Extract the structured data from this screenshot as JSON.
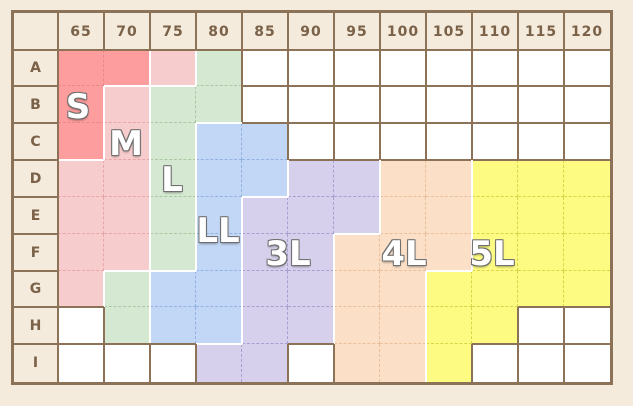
{
  "columns": [
    "65",
    "70",
    "75",
    "80",
    "85",
    "90",
    "95",
    "100",
    "105",
    "110",
    "115",
    "120"
  ],
  "rows": [
    "A",
    "B",
    "C",
    "D",
    "E",
    "F",
    "G",
    "H",
    "I"
  ],
  "colors": {
    "S": "#fd9d9d",
    "M": "#f7cccc",
    "L": "#d5e8d1",
    "LL": "#c2d6f5",
    "3L": "#d7d0ec",
    "4L": "#fbdfc6",
    "5L": "#fdfb82",
    "header": "#f4ebdc",
    "border": "#8c7257",
    "empty": "#ffffff"
  },
  "grid": [
    [
      "S",
      "S",
      "M",
      "L",
      "",
      "",
      "",
      "",
      "",
      "",
      "",
      ""
    ],
    [
      "S",
      "M",
      "L",
      "L",
      "",
      "",
      "",
      "",
      "",
      "",
      "",
      ""
    ],
    [
      "S",
      "M",
      "L",
      "LL",
      "LL",
      "",
      "",
      "",
      "",
      "",
      "",
      ""
    ],
    [
      "M",
      "M",
      "L",
      "LL",
      "LL",
      "3L",
      "3L",
      "4L",
      "4L",
      "5L",
      "5L",
      "5L"
    ],
    [
      "M",
      "M",
      "L",
      "LL",
      "3L",
      "3L",
      "3L",
      "4L",
      "4L",
      "5L",
      "5L",
      "5L"
    ],
    [
      "M",
      "M",
      "L",
      "LL",
      "3L",
      "3L",
      "4L",
      "4L",
      "4L",
      "5L",
      "5L",
      "5L"
    ],
    [
      "M",
      "L",
      "LL",
      "LL",
      "3L",
      "3L",
      "4L",
      "4L",
      "5L",
      "5L",
      "5L",
      "5L"
    ],
    [
      "",
      "L",
      "LL",
      "LL",
      "3L",
      "3L",
      "4L",
      "4L",
      "5L",
      "5L",
      "",
      ""
    ],
    [
      "",
      "",
      "",
      "3L",
      "3L",
      "",
      "4L",
      "4L",
      "5L",
      "",
      "",
      ""
    ]
  ],
  "size_labels": [
    {
      "text": "S",
      "size": "S"
    },
    {
      "text": "M",
      "size": "M"
    },
    {
      "text": "L",
      "size": "L"
    },
    {
      "text": "LL",
      "size": "LL"
    },
    {
      "text": "3L",
      "size": "3L"
    },
    {
      "text": "4L",
      "size": "4L"
    },
    {
      "text": "5L",
      "size": "5L"
    }
  ]
}
